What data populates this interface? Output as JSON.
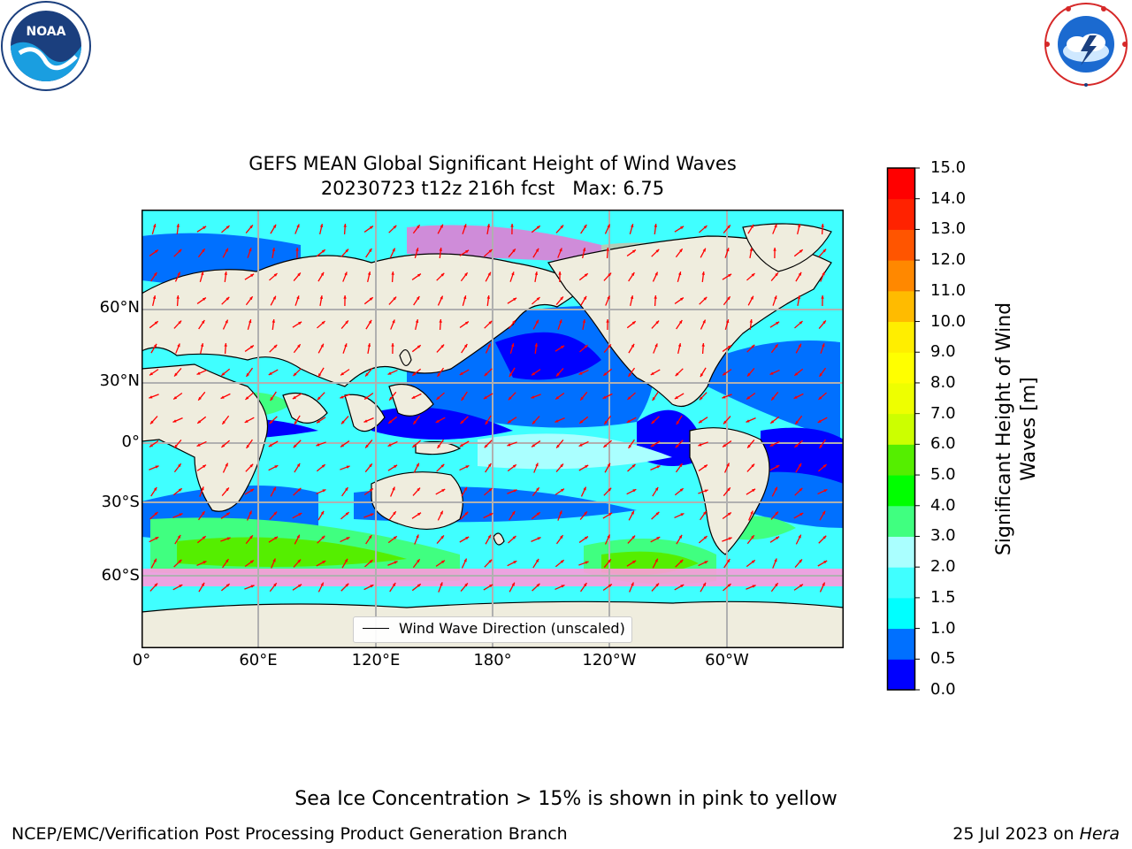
{
  "header": {
    "title_line1": "GEFS MEAN Global Significant Height of Wind Waves",
    "title_line2": "20230723 t12z 216h fcst   Max: 6.75",
    "left_logo": "noaa-logo",
    "right_logo": "national-weather-service-logo"
  },
  "map": {
    "lat_ticks": [
      "60°N",
      "30°N",
      "0°",
      "30°S",
      "60°S"
    ],
    "lon_ticks": [
      "0°",
      "60°E",
      "120°E",
      "180°",
      "120°W",
      "60°W"
    ],
    "legend_label": "Wind Wave Direction (unscaled)",
    "colors": {
      "land": "#efedde",
      "grid": "#b0b0b0",
      "arrow": "#ff0000",
      "sea_ice": "#ff66cc"
    },
    "feature_icons": [
      "coastline",
      "graticule",
      "wind-wave-arrows"
    ]
  },
  "colorbar": {
    "label_line1": "Significant Height of Wind",
    "label_line2": "Waves [m]",
    "levels": [
      "0.0",
      "0.5",
      "1.0",
      "1.5",
      "2.0",
      "3.0",
      "4.0",
      "5.0",
      "6.0",
      "7.0",
      "8.0",
      "9.0",
      "10.0",
      "11.0",
      "12.0",
      "13.0",
      "14.0",
      "15.0"
    ],
    "colors": [
      "#0000ff",
      "#0070ff",
      "#00ffff",
      "#40ffff",
      "#aaffff",
      "#40ff80",
      "#00ff00",
      "#55ee00",
      "#ccff00",
      "#eeff00",
      "#ffff00",
      "#ffee00",
      "#ffbb00",
      "#ff8800",
      "#ff5500",
      "#ff2200",
      "#ff0000"
    ]
  },
  "footer": {
    "note": "Sea Ice Concentration > 15% is shown in pink to yellow",
    "left": "NCEP/EMC/Verification Post Processing Product Generation Branch",
    "right_date": "25 Jul 2023 on ",
    "right_machine": "Hera"
  }
}
